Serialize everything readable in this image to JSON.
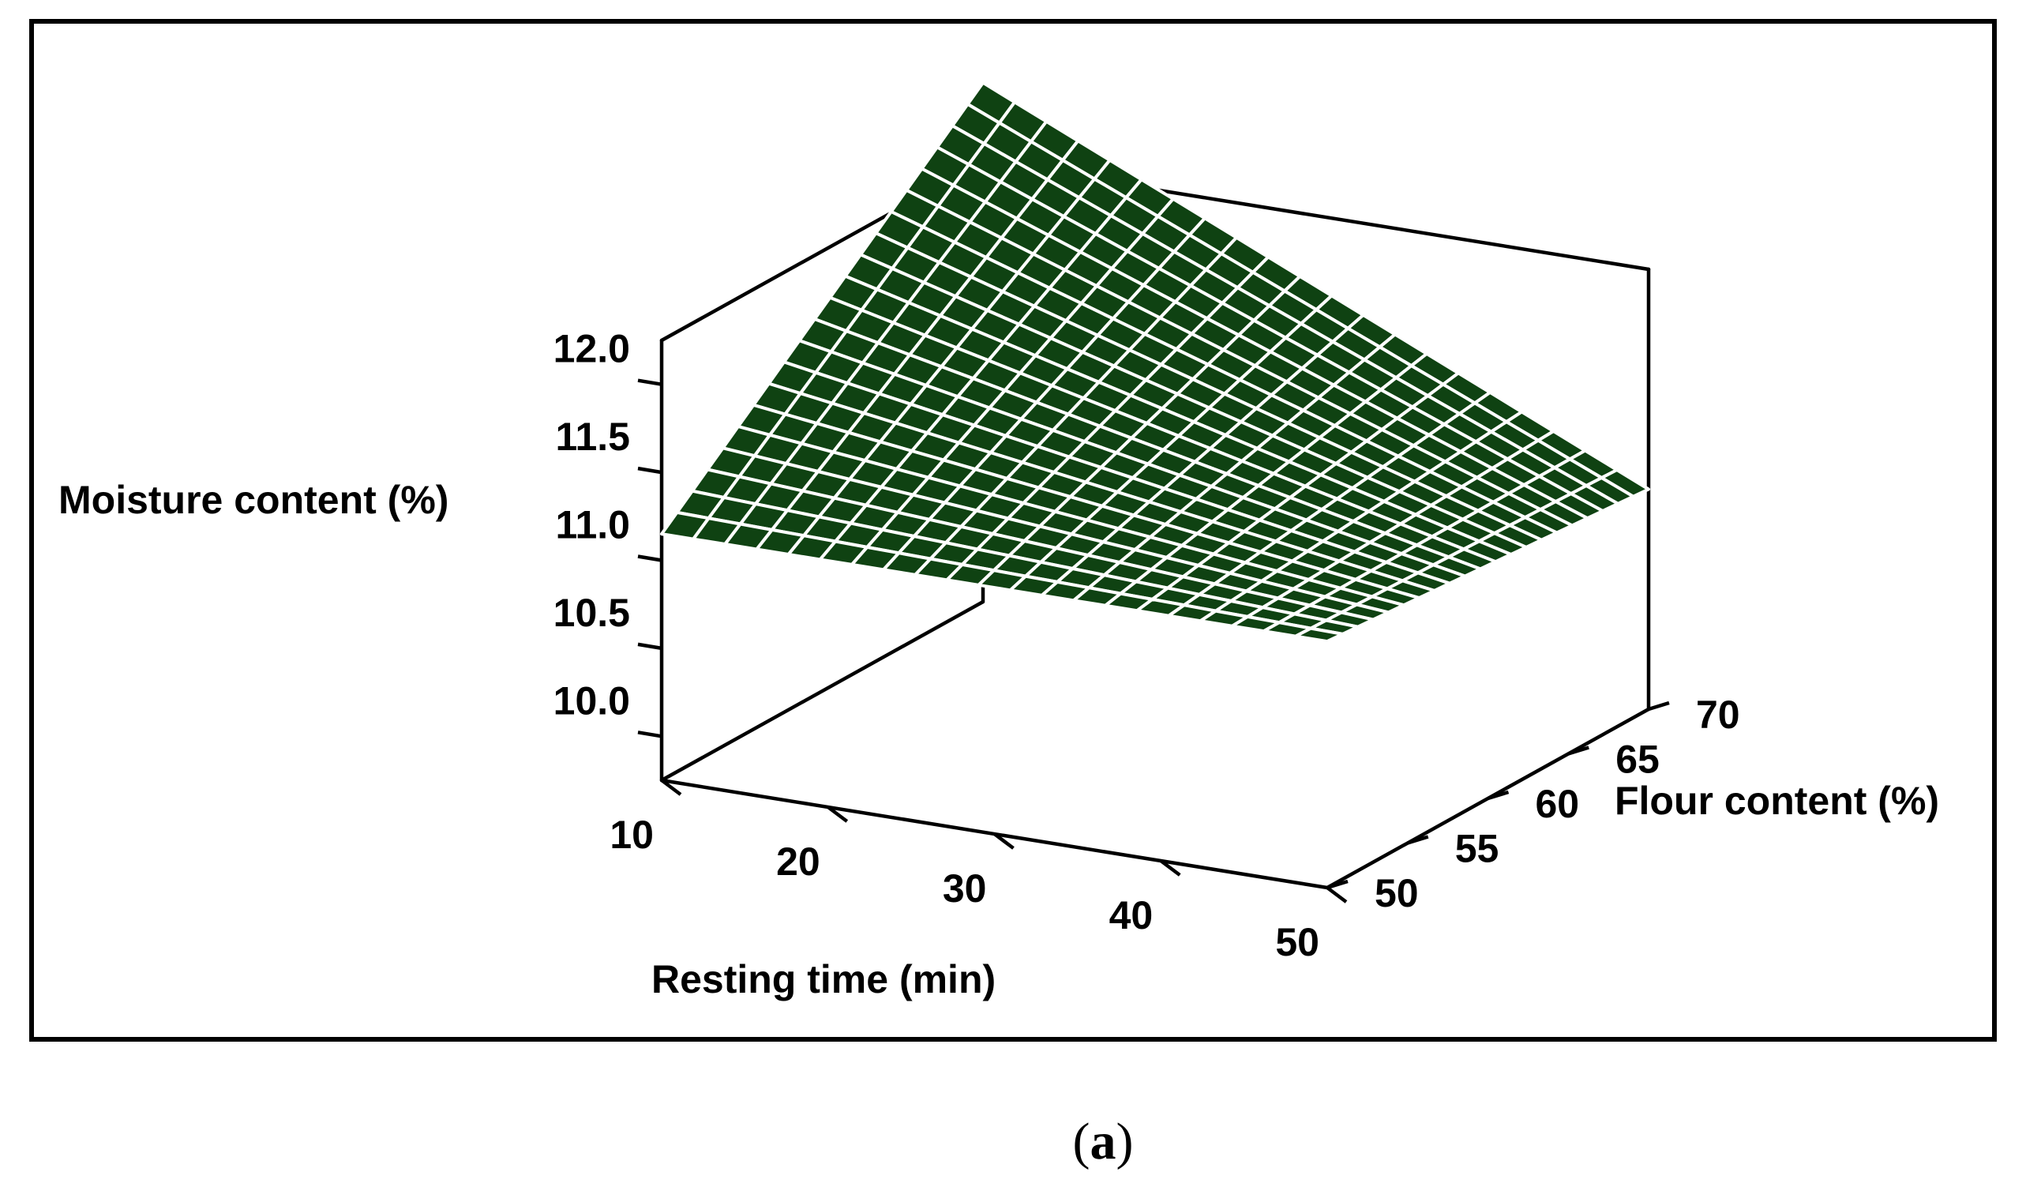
{
  "chart_data": {
    "type": "surface3d",
    "zlabel": "Moisture content (%)",
    "xlabel": "Resting time (min)",
    "ylabel": "Flour content (%)",
    "x_ticks": [
      "10",
      "20",
      "30",
      "40",
      "50"
    ],
    "y_ticks": [
      "50",
      "55",
      "60",
      "65",
      "70"
    ],
    "z_ticks": [
      "10.0",
      "10.5",
      "11.0",
      "11.5",
      "12.0"
    ],
    "x_range": [
      10,
      50
    ],
    "y_range": [
      50,
      70
    ],
    "z_range": [
      9.75,
      12.25
    ],
    "grid_size": 21,
    "corner_values": {
      "time10_flour50": 11.15,
      "time50_flour50": 11.15,
      "time10_flour70": 12.7,
      "time50_flour70": 11.0
    },
    "surface_color": "#0f4212",
    "mesh_color": "#ffffff"
  },
  "caption": {
    "open": "(",
    "label": "a",
    "close": ")"
  }
}
